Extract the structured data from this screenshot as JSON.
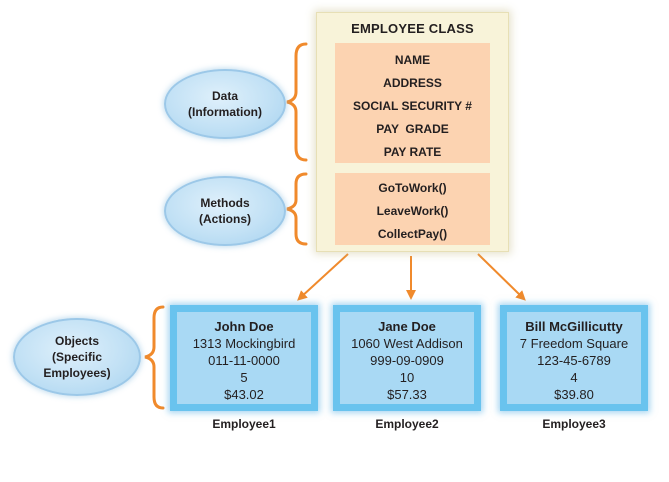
{
  "class": {
    "title": "EMPLOYEE CLASS",
    "data_fields": [
      "NAME",
      "ADDRESS",
      "SOCIAL SECURITY #",
      "PAY  GRADE",
      "PAY RATE"
    ],
    "methods": [
      "GoToWork()",
      "LeaveWork()",
      "CollectPay()"
    ]
  },
  "labels": {
    "data": [
      "Data",
      "(Information)"
    ],
    "methods": [
      "Methods",
      "(Actions)"
    ],
    "objects": [
      "Objects",
      "(Specific",
      "Employees)"
    ]
  },
  "objects": [
    {
      "name": "John Doe",
      "address": "1313 Mockingbird",
      "ssn": "011-11-0000",
      "grade": "5",
      "rate": "$43.02",
      "label": "Employee1"
    },
    {
      "name": "Jane Doe",
      "address": "1060 West Addison",
      "ssn": "999-09-0909",
      "grade": "10",
      "rate": "$57.33",
      "label": "Employee2"
    },
    {
      "name": "Bill McGillicutty",
      "address": "7 Freedom Square",
      "ssn": "123-45-6789",
      "grade": "4",
      "rate": "$39.80",
      "label": "Employee3"
    }
  ],
  "colors": {
    "bracket": "#f08a2c",
    "arrow": "#f08a2c",
    "section_fill": "#fcd3b1",
    "class_fill": "#f8f3d9",
    "object_fill": "#a9d9f4",
    "object_border": "#69c3ee",
    "ellipse_fill": "#c2e1f5"
  }
}
